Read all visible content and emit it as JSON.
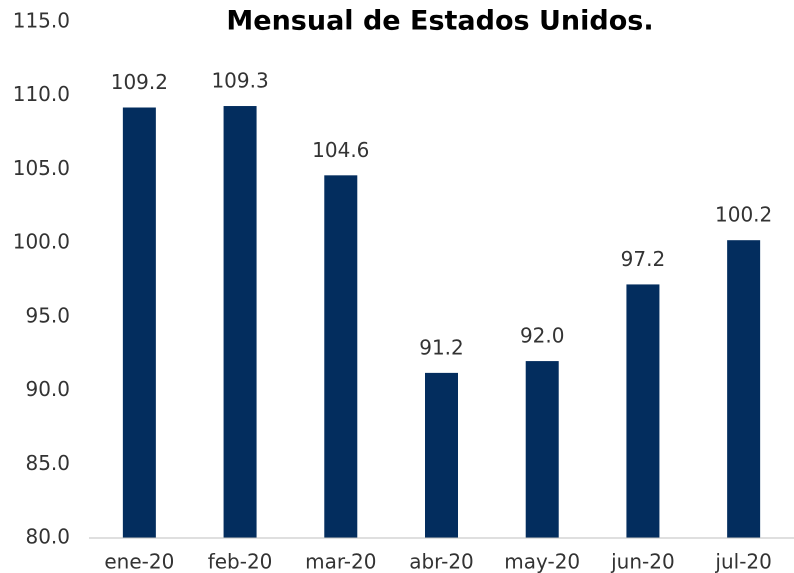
{
  "chart_data": {
    "type": "bar",
    "title": "Mensual de Estados Unidos.",
    "categories": [
      "ene-20",
      "feb-20",
      "mar-20",
      "abr-20",
      "may-20",
      "jun-20",
      "jul-20"
    ],
    "values": [
      109.2,
      109.3,
      104.6,
      91.2,
      92.0,
      97.2,
      100.2
    ],
    "value_labels": [
      "109.2",
      "109.3",
      "104.6",
      "91.2",
      "92.0",
      "97.2",
      "100.2"
    ],
    "color": "#032d5e",
    "ylim": [
      80,
      115
    ],
    "yticks": [
      {
        "value": 80,
        "label": "80.0"
      },
      {
        "value": 85,
        "label": "85.0"
      },
      {
        "value": 90,
        "label": "90.0"
      },
      {
        "value": 95,
        "label": "95.0"
      },
      {
        "value": 100,
        "label": "100.0"
      },
      {
        "value": 105,
        "label": "105.0"
      },
      {
        "value": 110,
        "label": "110.0"
      },
      {
        "value": 115,
        "label": "115.0"
      }
    ],
    "grid": false
  }
}
